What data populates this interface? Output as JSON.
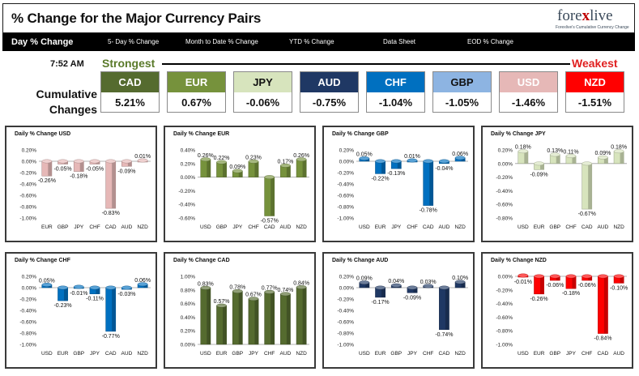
{
  "header": {
    "title": "% Change for the Major Currency Pairs",
    "logo_pre": "fore",
    "logo_x": "x",
    "logo_post": "live",
    "logo_tagline": "Forexlive's Cumulative Currency Change"
  },
  "nav": [
    {
      "label": "Day % Change",
      "active": true
    },
    {
      "label": "5- Day % Change",
      "active": false
    },
    {
      "label": "Month to Date % Change",
      "active": false
    },
    {
      "label": "YTD % Change",
      "active": false
    },
    {
      "label": "Data Sheet",
      "active": false
    },
    {
      "label": "EOD % Change",
      "active": false
    }
  ],
  "summary": {
    "time": "7:52 AM",
    "strongest_label": "Strongest",
    "weakest_label": "Weakest",
    "cumulative_label": "Cumulative Changes",
    "currencies": [
      {
        "name": "CAD",
        "value": "5.21%",
        "bg": "#556b2f",
        "fg": "#ffffff"
      },
      {
        "name": "EUR",
        "value": "0.67%",
        "bg": "#76923c",
        "fg": "#ffffff"
      },
      {
        "name": "JPY",
        "value": "-0.06%",
        "bg": "#d7e4bd",
        "fg": "#111111"
      },
      {
        "name": "AUD",
        "value": "-0.75%",
        "bg": "#1f3864",
        "fg": "#ffffff"
      },
      {
        "name": "CHF",
        "value": "-1.04%",
        "bg": "#0070c0",
        "fg": "#ffffff"
      },
      {
        "name": "GBP",
        "value": "-1.05%",
        "bg": "#8db4e2",
        "fg": "#111111"
      },
      {
        "name": "USD",
        "value": "-1.46%",
        "bg": "#e6b8b7",
        "fg": "#ffffff"
      },
      {
        "name": "NZD",
        "value": "-1.51%",
        "bg": "#ff0000",
        "fg": "#ffffff"
      }
    ]
  },
  "chart_data": [
    {
      "type": "bar",
      "title": "Daily % Change USD",
      "categories": [
        "EUR",
        "GBP",
        "JPY",
        "CHF",
        "CAD",
        "AUD",
        "NZD"
      ],
      "values": [
        -0.26,
        -0.05,
        -0.18,
        -0.05,
        -0.83,
        -0.09,
        0.01
      ],
      "labels": [
        "-0.26%",
        "-0.05%",
        "-0.18%",
        "-0.05%",
        "-0.83%",
        "-0.09%",
        "0.01%"
      ],
      "yticks": [
        "0.20%",
        "0.00%",
        "-0.20%",
        "-0.40%",
        "-0.60%",
        "-0.80%",
        "-1.00%"
      ],
      "ylim": [
        -1.0,
        0.2
      ],
      "color": "#e6b8b7"
    },
    {
      "type": "bar",
      "title": "Daily % Change EUR",
      "categories": [
        "USD",
        "GBP",
        "JPY",
        "CHF",
        "CAD",
        "AUD",
        "NZD"
      ],
      "values": [
        0.26,
        0.22,
        0.09,
        0.23,
        -0.57,
        0.17,
        0.26
      ],
      "labels": [
        "0.26%",
        "0.22%",
        "0.09%",
        "0.23%",
        "-0.57%",
        "0.17%",
        "0.26%"
      ],
      "yticks": [
        "0.40%",
        "0.20%",
        "0.00%",
        "-0.20%",
        "-0.40%",
        "-0.60%"
      ],
      "ylim": [
        -0.6,
        0.4
      ],
      "color": "#76923c"
    },
    {
      "type": "bar",
      "title": "Daily % Change GBP",
      "categories": [
        "USD",
        "EUR",
        "JPY",
        "CHF",
        "CAD",
        "AUD",
        "NZD"
      ],
      "values": [
        0.05,
        -0.22,
        -0.13,
        0.01,
        -0.78,
        -0.04,
        0.06
      ],
      "labels": [
        "0.05%",
        "-0.22%",
        "-0.13%",
        "0.01%",
        "-0.78%",
        "-0.04%",
        "0.06%"
      ],
      "yticks": [
        "0.20%",
        "0.00%",
        "-0.20%",
        "-0.40%",
        "-0.60%",
        "-0.80%",
        "-1.00%"
      ],
      "ylim": [
        -1.0,
        0.2
      ],
      "color": "#0070c0"
    },
    {
      "type": "bar",
      "title": "Daily % Change JPY",
      "categories": [
        "USD",
        "EUR",
        "GBP",
        "CHF",
        "CAD",
        "AUD",
        "NZD"
      ],
      "values": [
        0.18,
        -0.09,
        0.13,
        0.11,
        -0.67,
        0.09,
        0.18
      ],
      "labels": [
        "0.18%",
        "-0.09%",
        "0.13%",
        "0.11%",
        "-0.67%",
        "0.09%",
        "0.18%"
      ],
      "yticks": [
        "0.20%",
        "0.00%",
        "-0.20%",
        "-0.40%",
        "-0.60%",
        "-0.80%"
      ],
      "ylim": [
        -0.8,
        0.2
      ],
      "color": "#d7e4bd"
    },
    {
      "type": "bar",
      "title": "Daily % Change CHF",
      "categories": [
        "USD",
        "EUR",
        "GBP",
        "JPY",
        "CAD",
        "AUD",
        "NZD"
      ],
      "values": [
        0.05,
        -0.23,
        -0.01,
        -0.11,
        -0.77,
        -0.03,
        0.06
      ],
      "labels": [
        "0.05%",
        "-0.23%",
        "-0.01%",
        "-0.11%",
        "-0.77%",
        "-0.03%",
        "0.06%"
      ],
      "yticks": [
        "0.20%",
        "0.00%",
        "-0.20%",
        "-0.40%",
        "-0.60%",
        "-0.80%",
        "-1.00%"
      ],
      "ylim": [
        -1.0,
        0.2
      ],
      "color": "#0070c0"
    },
    {
      "type": "bar",
      "title": "Daily % Change CAD",
      "categories": [
        "USD",
        "EUR",
        "GBP",
        "JPY",
        "CHF",
        "AUD",
        "NZD"
      ],
      "values": [
        0.83,
        0.57,
        0.78,
        0.67,
        0.77,
        0.74,
        0.84
      ],
      "labels": [
        "0.83%",
        "0.57%",
        "0.78%",
        "0.67%",
        "0.77%",
        "0.74%",
        "0.84%"
      ],
      "yticks": [
        "1.00%",
        "0.80%",
        "0.60%",
        "0.40%",
        "0.20%",
        "0.00%"
      ],
      "ylim": [
        0,
        1.0
      ],
      "color": "#556b2f"
    },
    {
      "type": "bar",
      "title": "Daily % Change AUD",
      "categories": [
        "USD",
        "EUR",
        "GBP",
        "JPY",
        "CHF",
        "CAD",
        "NZD"
      ],
      "values": [
        0.09,
        -0.17,
        0.04,
        -0.09,
        0.03,
        -0.74,
        0.1
      ],
      "labels": [
        "0.09%",
        "-0.17%",
        "0.04%",
        "-0.09%",
        "0.03%",
        "-0.74%",
        "0.10%"
      ],
      "yticks": [
        "0.20%",
        "0.00%",
        "-0.20%",
        "-0.40%",
        "-0.60%",
        "-0.80%",
        "-1.00%"
      ],
      "ylim": [
        -1.0,
        0.2
      ],
      "color": "#1f3864"
    },
    {
      "type": "bar",
      "title": "Daily % Change NZD",
      "categories": [
        "USD",
        "EUR",
        "GBP",
        "JPY",
        "CHF",
        "CAD",
        "AUD"
      ],
      "values": [
        -0.01,
        -0.26,
        -0.06,
        -0.18,
        -0.06,
        -0.84,
        -0.1
      ],
      "labels": [
        "-0.01%",
        "-0.26%",
        "-0.06%",
        "-0.18%",
        "-0.06%",
        "-0.84%",
        "-0.10%"
      ],
      "yticks": [
        "0.00%",
        "-0.20%",
        "-0.40%",
        "-0.60%",
        "-0.80%",
        "-1.00%"
      ],
      "ylim": [
        -1.0,
        0.0
      ],
      "color": "#ff0000"
    }
  ]
}
